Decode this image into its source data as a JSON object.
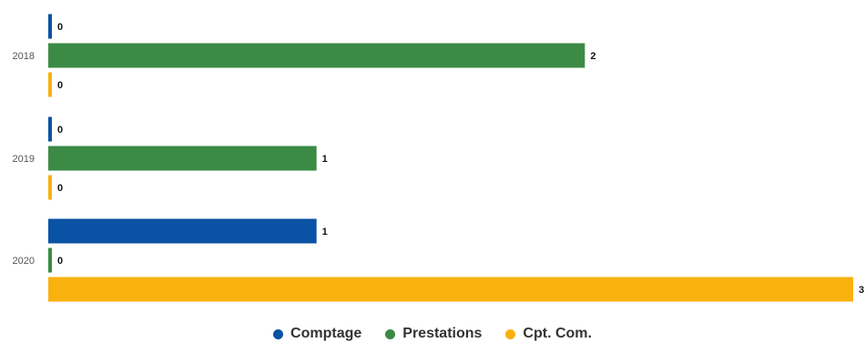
{
  "chart_data": {
    "type": "bar",
    "orientation": "horizontal",
    "categories": [
      "2018",
      "2019",
      "2020"
    ],
    "series": [
      {
        "name": "Comptage",
        "color": "#0a52a3",
        "values": [
          0,
          0,
          1
        ]
      },
      {
        "name": "Prestations",
        "color": "#3b8a45",
        "values": [
          2,
          1,
          0
        ]
      },
      {
        "name": "Cpt. Com.",
        "color": "#f9b10e",
        "values": [
          0,
          0,
          3
        ]
      }
    ],
    "xlim": [
      0,
      3
    ],
    "grid": false,
    "legend_position": "bottom-center",
    "data_labels": true
  }
}
